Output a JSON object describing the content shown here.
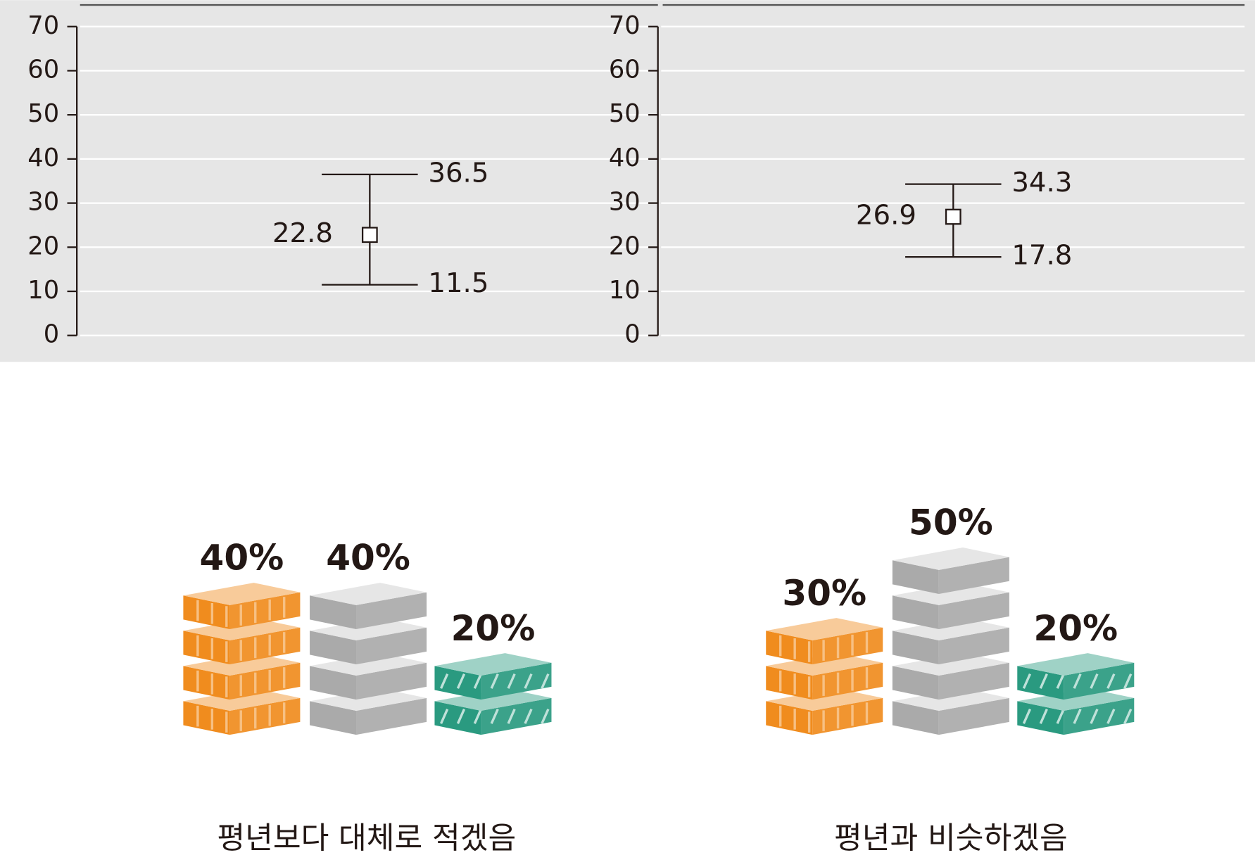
{
  "chart_data": [
    {
      "type": "errorbar",
      "ylim": [
        0,
        70
      ],
      "yticks": [
        0,
        10,
        20,
        30,
        40,
        50,
        60,
        70
      ],
      "grid": true,
      "values": [
        22.8
      ],
      "low": [
        11.5
      ],
      "high": [
        36.5
      ]
    },
    {
      "type": "errorbar",
      "ylim": [
        0,
        70
      ],
      "yticks": [
        0,
        10,
        20,
        30,
        40,
        50,
        60,
        70
      ],
      "grid": true,
      "values": [
        26.9
      ],
      "low": [
        17.8
      ],
      "high": [
        34.3
      ]
    },
    {
      "type": "pictogram",
      "title": "평년보다 대체로 적겠음",
      "values": [
        40,
        40,
        20
      ],
      "value_labels": [
        "40%",
        "40%",
        "20%"
      ],
      "colors": [
        "#f08c1e",
        "#aaaaaa",
        "#2a9a80"
      ]
    },
    {
      "type": "pictogram",
      "title": "평년과 비슷하겠음",
      "values": [
        30,
        50,
        20
      ],
      "value_labels": [
        "30%",
        "50%",
        "20%"
      ],
      "colors": [
        "#f08c1e",
        "#aaaaaa",
        "#2a9a80"
      ]
    }
  ]
}
